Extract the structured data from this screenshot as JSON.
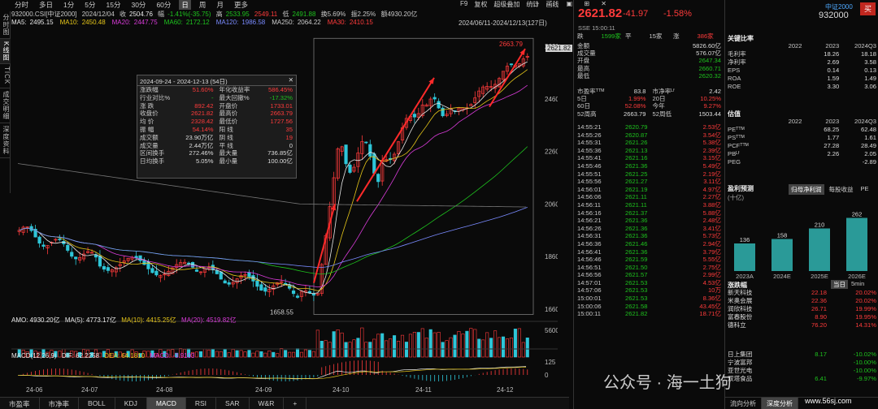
{
  "period_tabs": [
    "分时",
    "多日",
    "1分",
    "5分",
    "15分",
    "30分",
    "60分",
    "日",
    "周",
    "月",
    "更多"
  ],
  "period_active": 7,
  "vertical_tabs": [
    "分时图",
    "K线图",
    "TICK",
    "成交明细",
    "深度资料"
  ],
  "vertical_active": 1,
  "f9bar": [
    "F9",
    "复权",
    "超级叠加",
    "统计",
    "画线"
  ],
  "quote": {
    "code": "932000.CSI[中证2000]",
    "date": "2024/12/04",
    "open_label": "收",
    "open": "2504.76",
    "chg_label": "幅",
    "chg": "-1.41%(-35.75)",
    "high_label": "高",
    "high": "2533.95",
    "high2": "2549.11",
    "low_label": "低",
    "low": "2491.88",
    "turnover": "换5.69%",
    "amp": "振2.25%",
    "amt": "额4930.20亿"
  },
  "ma": [
    {
      "k": "MA5:",
      "v": "2495.15",
      "c": "#e8e8e8"
    },
    {
      "k": "MA10:",
      "v": "2450.48",
      "c": "#e6c619"
    },
    {
      "k": "MA20:",
      "v": "2447.75",
      "c": "#d93bd9"
    },
    {
      "k": "MA60:",
      "v": "2172.12",
      "c": "#1ec31e"
    },
    {
      "k": "MA120:",
      "v": "1986.58",
      "c": "#7a8bff"
    },
    {
      "k": "MA250:",
      "v": "2064.22",
      "c": "#cccccc"
    },
    {
      "k": "MA30:",
      "v": "2410.15",
      "c": "#ff3b3b"
    }
  ],
  "range_label": "2024/06/11-2024/12/13(127日)",
  "chart_data": {
    "type": "candlestick",
    "y_ticks": [
      "2660",
      "2460",
      "2260",
      "2060",
      "1860",
      "1660"
    ],
    "y_min": 1620,
    "y_max": 2700,
    "last_price": "2621.82",
    "low_mark": "1658.55",
    "high_mark": "2663.79",
    "x_ticks": [
      "24-06",
      "24-07",
      "24-08",
      "24-09",
      "24-10",
      "24-11",
      "24-12"
    ],
    "vol_tick": "5600.00亿",
    "macd_ticks": [
      "125",
      "0"
    ]
  },
  "popup": {
    "title": "2024-09-24 - 2024-12-13 (54日)",
    "rows": [
      [
        "涨跌幅",
        "51.60%",
        "年化收益率",
        "586.45%"
      ],
      [
        "行业对比%",
        "-",
        "最大回撤%",
        "-17.32%"
      ],
      [
        "涨 跌",
        "892.42",
        "开盘价",
        "1733.01"
      ],
      [
        "收盘价",
        "2621.82",
        "最高价",
        "2663.79"
      ],
      [
        "均 价",
        "2328.42",
        "最低价",
        "1727.56"
      ],
      [
        "振 幅",
        "54.14%",
        "阳 线",
        "35"
      ],
      [
        "成交额",
        "23.90万亿",
        "阴 线",
        "19"
      ],
      [
        "成交量",
        "2.44万亿",
        "平 线",
        "0"
      ],
      [
        "区间换手",
        "272.46%",
        "最大量",
        "736.85亿"
      ],
      [
        "日均换手",
        "5.05%",
        "最小量",
        "100.00亿"
      ]
    ]
  },
  "amo": {
    "a": "AMO: 4930.20亿",
    "b": "MA(5): 4773.17亿",
    "c": "MA(10): 4415.25亿",
    "d": "MA(20): 4519.82亿"
  },
  "macd": {
    "a": "MACD(12,26,9)",
    "b": "DIF: 62.2258",
    "c": "DEA: 64.1810",
    "d": "MACD: -3.9103"
  },
  "bottom_tabs": [
    "市盈率",
    "市净率",
    "BOLL",
    "KDJ",
    "MACD",
    "RSI",
    "SAR",
    "W&R",
    "+"
  ],
  "bottom_active": 4,
  "mid": {
    "price": "2621.82",
    "chg": "-41.97",
    "pct": "-1.58%",
    "name": "中证2000",
    "code": "932000",
    "sse": "SSE  15:00:11",
    "stats": [
      [
        "跌",
        "1599家",
        "平",
        "15家",
        "涨",
        "386家"
      ]
    ],
    "kv": [
      [
        "金额",
        "5826.60亿"
      ],
      [
        "成交量",
        "576.07亿"
      ],
      [
        "开盘",
        "2647.34"
      ],
      [
        "最高",
        "2660.71"
      ],
      [
        "最低",
        "2620.32"
      ]
    ],
    "pe": [
      [
        "市盈率ᵀᵀᴹ",
        "83.8",
        "市净率ᴸᶠ",
        "2.42"
      ],
      [
        "5日",
        "1.99%",
        "20日",
        "10.25%"
      ],
      [
        "60日",
        "52.08%",
        "今年",
        "9.27%"
      ],
      [
        "52周高",
        "2663.79",
        "52周低",
        "1503.44"
      ]
    ],
    "ticks": [
      [
        "14:55:21",
        "2620.79",
        "2.53亿"
      ],
      [
        "14:55:26",
        "2620.87",
        "3.54亿"
      ],
      [
        "14:55:31",
        "2621.26",
        "5.38亿"
      ],
      [
        "14:55:36",
        "2621.13",
        "2.39亿"
      ],
      [
        "14:55:41",
        "2621.16",
        "3.15亿"
      ],
      [
        "14:55:46",
        "2621.36",
        "5.49亿"
      ],
      [
        "14:55:51",
        "2621.25",
        "2.19亿"
      ],
      [
        "14:55:56",
        "2621.27",
        "3.11亿"
      ],
      [
        "14:56:01",
        "2621.19",
        "4.97亿"
      ],
      [
        "14:56:06",
        "2621.11",
        "2.27亿"
      ],
      [
        "14:56:11",
        "2621.11",
        "3.88亿"
      ],
      [
        "14:56:16",
        "2621.37",
        "5.88亿"
      ],
      [
        "14:56:21",
        "2621.36",
        "2.48亿"
      ],
      [
        "14:56:26",
        "2621.36",
        "3.41亿"
      ],
      [
        "14:56:31",
        "2621.36",
        "5.73亿"
      ],
      [
        "14:56:36",
        "2621.46",
        "2.94亿"
      ],
      [
        "14:56:41",
        "2621.36",
        "3.79亿"
      ],
      [
        "14:56:46",
        "2621.59",
        "5.55亿"
      ],
      [
        "14:56:51",
        "2621.50",
        "2.75亿"
      ],
      [
        "14:56:56",
        "2621.57",
        "2.99亿"
      ],
      [
        "14:57:01",
        "2621.53",
        "4.53亿"
      ],
      [
        "14:57:06",
        "2621.53",
        "10万"
      ],
      [
        "15:00:01",
        "2621.53",
        "8.36亿"
      ],
      [
        "15:00:06",
        "2621.58",
        "43.45亿"
      ],
      [
        "15:00:11",
        "2621.82",
        "18.71亿"
      ]
    ]
  },
  "right": {
    "name": "中证2000",
    "code": "932000",
    "buy": "买",
    "valuation_title": "关键比率",
    "years": [
      "2022",
      "2023",
      "2024Q3"
    ],
    "ratios": [
      [
        "毛利率",
        "",
        "18.26",
        "18.18"
      ],
      [
        "净利率",
        "",
        "2.69",
        "3.58"
      ],
      [
        "EPS",
        "",
        "0.14",
        "0.13"
      ],
      [
        "ROA",
        "",
        "1.59",
        "1.49"
      ],
      [
        "ROE",
        "",
        "3.30",
        "3.06"
      ]
    ],
    "est_title": "估值",
    "est_years": [
      "2022",
      "2023",
      "2024Q3"
    ],
    "est": [
      [
        "PEᵀᵀᴹ",
        "",
        "68.25",
        "62.48"
      ],
      [
        "PSᵀᵀᴹ",
        "",
        "1.77",
        "1.61"
      ],
      [
        "PCFᵀᵀᴹ",
        "",
        "27.28",
        "28.49"
      ],
      [
        "PBᴸᶠ",
        "",
        "2.26",
        "2.05"
      ],
      [
        "PEG",
        "",
        "",
        "-2.89"
      ]
    ],
    "profit_title": "盈利预测",
    "profit_unit": "(十亿)",
    "profit_tabs": [
      "归母净利润",
      "每股收益",
      "PE"
    ],
    "bars": [
      {
        "label": "2023A",
        "value": 136
      },
      {
        "label": "2024E",
        "value": 158
      },
      {
        "label": "2025E",
        "value": 210
      },
      {
        "label": "2026E",
        "value": 262
      }
    ],
    "up_title": "涨跌幅",
    "up_btn": "当日",
    "up_btn2": "5min",
    "up": [
      [
        "新天科技",
        "22.18",
        "20.02%"
      ],
      [
        "米奥会展",
        "22.36",
        "20.02%"
      ],
      [
        "润欣科技",
        "26.71",
        "19.99%"
      ],
      [
        "富春股份",
        "8.90",
        "19.95%"
      ],
      [
        "德科立",
        "76.20",
        "14.31%"
      ]
    ],
    "down": [
      [
        "日上集团",
        "8.17",
        "-10.02%"
      ],
      [
        "宁波富邦",
        "",
        "-10.00%"
      ],
      [
        "亚世光电",
        "",
        "-10.00%"
      ],
      [
        "双塔食品",
        "6.41",
        "-9.97%"
      ]
    ],
    "foot": [
      "流向分析",
      "深度分析"
    ]
  },
  "watermark": "公众号 · 海一土狗",
  "watermark_url": "www.56sj.com"
}
